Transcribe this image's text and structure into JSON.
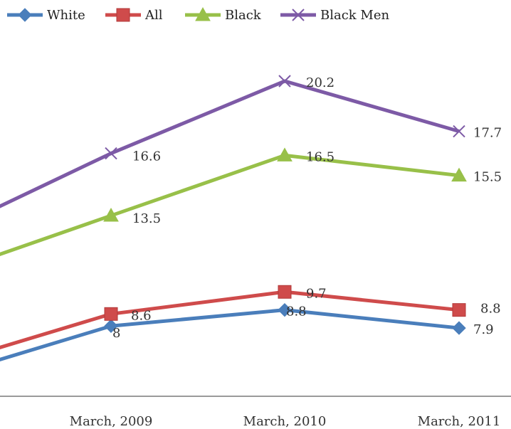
{
  "chart_data": {
    "type": "line",
    "title": "",
    "xlabel": "",
    "ylabel": "",
    "categories": [
      "",
      "March, 2009",
      "March, 2010",
      "March, 2011"
    ],
    "ylim": [
      4.5,
      23
    ],
    "legend_position": "top",
    "grid": false,
    "series": [
      {
        "name": "White",
        "color": "#4a7ebb",
        "marker": "diamond",
        "values": [
          5.4,
          8,
          8.8,
          7.9
        ],
        "labels": [
          "",
          "8",
          "8.8",
          "7.9"
        ]
      },
      {
        "name": "All",
        "color": "#cf4b4b",
        "marker": "square",
        "values": [
          6.0,
          8.6,
          9.7,
          8.8
        ],
        "labels": [
          "",
          "8.6",
          "9.7",
          "8.8"
        ]
      },
      {
        "name": "Black",
        "color": "#98c049",
        "marker": "triangle",
        "values": [
          10.5,
          13.5,
          16.5,
          15.5
        ],
        "labels": [
          "",
          "13.5",
          "16.5",
          "15.5"
        ]
      },
      {
        "name": "Black Men",
        "color": "#7d5aa6",
        "marker": "x",
        "values": [
          12.5,
          16.6,
          20.2,
          17.7
        ],
        "labels": [
          "",
          "16.6",
          "20.2",
          "17.7"
        ]
      }
    ]
  }
}
